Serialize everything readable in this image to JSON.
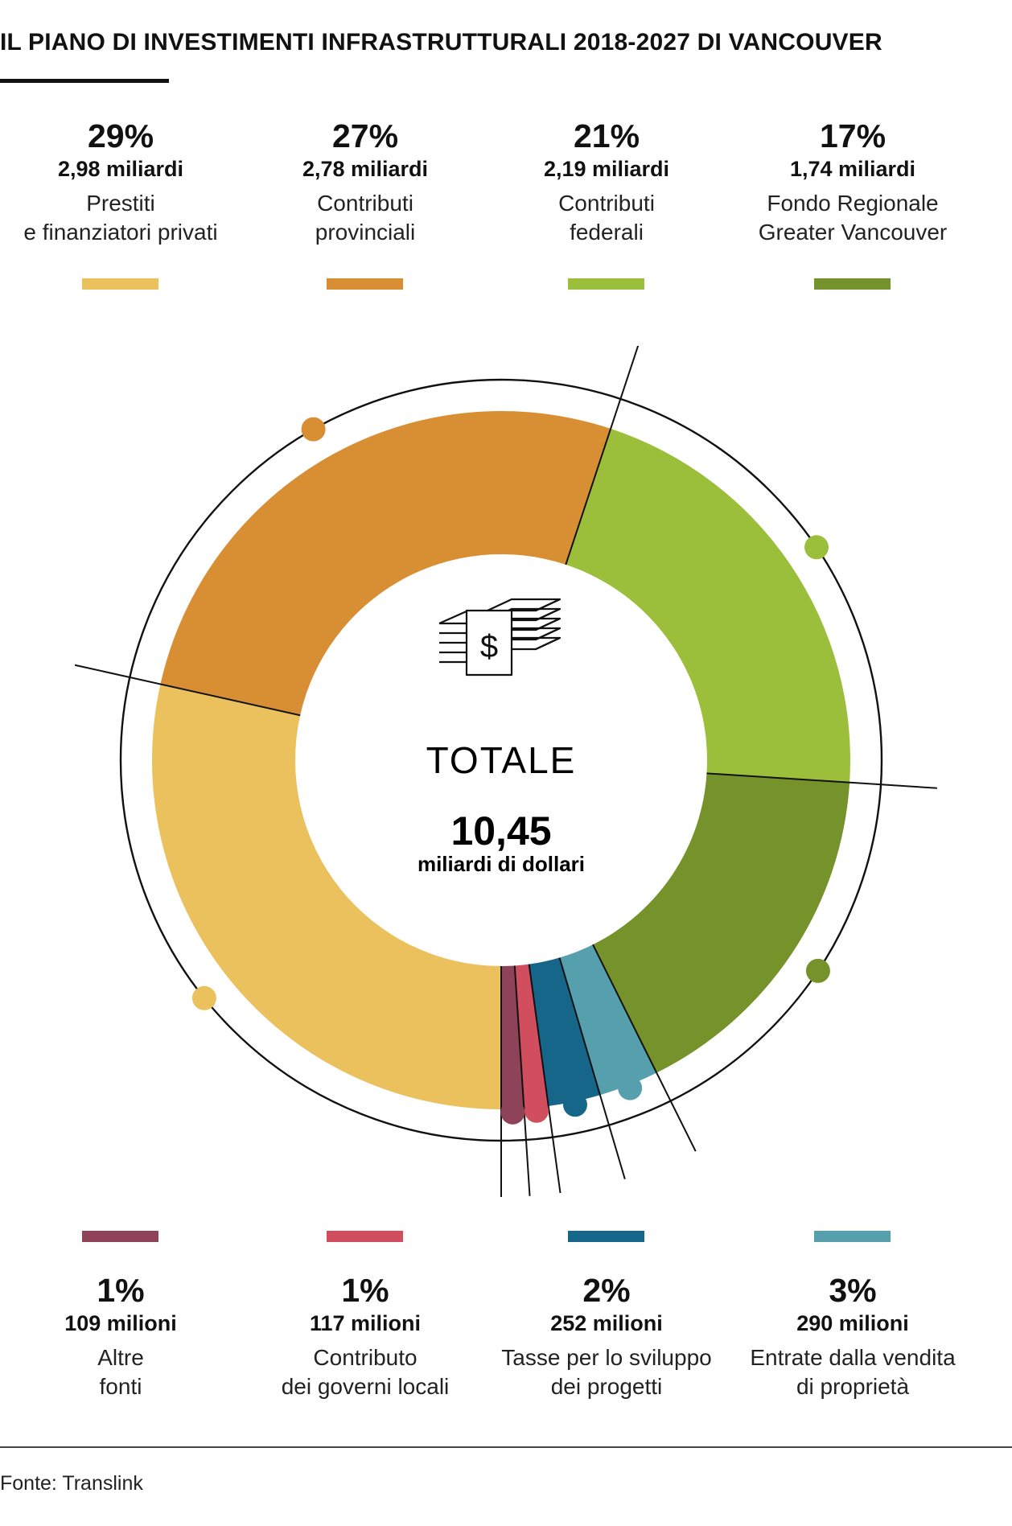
{
  "title": "IL PIANO DI INVESTIMENTI INFRASTRUTTURALI 2018-2027 DI VANCOUVER",
  "center": {
    "title": "TOTALE",
    "value": "10,45",
    "unit": "miliardi di dollari",
    "icon": "banknotes-icon"
  },
  "source": "Fonte: Translink",
  "chart_data": {
    "type": "pie",
    "total": 10.45,
    "segments": [
      {
        "name": "Prestiti e finanziatori privati",
        "label_lines": [
          "Prestiti",
          "e finanziatori privati"
        ],
        "percent": "29%",
        "amount_text": "2,98 miliardi",
        "value": 2.98,
        "color": "#EBC15E"
      },
      {
        "name": "Contributi provinciali",
        "label_lines": [
          "Contributi",
          "provinciali"
        ],
        "percent": "27%",
        "amount_text": "2,78 miliardi",
        "value": 2.78,
        "color": "#D88F34"
      },
      {
        "name": "Contributi federali",
        "label_lines": [
          "Contributi",
          "federali"
        ],
        "percent": "21%",
        "amount_text": "2,19 miliardi",
        "value": 2.19,
        "color": "#9BBF3B"
      },
      {
        "name": "Fondo Regionale Greater Vancouver",
        "label_lines": [
          "Fondo Regionale",
          "Greater Vancouver"
        ],
        "percent": "17%",
        "amount_text": "1,74 miliardi",
        "value": 1.74,
        "color": "#76932B"
      },
      {
        "name": "Entrate dalla vendita di proprietà",
        "label_lines": [
          "Entrate dalla vendita",
          "di proprietà"
        ],
        "percent": "3%",
        "amount_text": "290 milioni",
        "value": 0.29,
        "color": "#56A0AE"
      },
      {
        "name": "Tasse per lo sviluppo dei progetti",
        "label_lines": [
          "Tasse per lo sviluppo",
          "dei progetti"
        ],
        "percent": "2%",
        "amount_text": "252 milioni",
        "value": 0.252,
        "color": "#16668A"
      },
      {
        "name": "Contributo dei governi locali",
        "label_lines": [
          "Contributo",
          "dei governi locali"
        ],
        "percent": "1%",
        "amount_text": "117 milioni",
        "value": 0.117,
        "color": "#D04E5E"
      },
      {
        "name": "Altre fonti",
        "label_lines": [
          "Altre",
          "fonti"
        ],
        "percent": "1%",
        "amount_text": "109 milioni",
        "value": 0.109,
        "color": "#8E4358"
      }
    ],
    "legend_top": [
      0,
      1,
      2,
      3
    ],
    "legend_bottom": [
      7,
      6,
      5,
      4
    ]
  }
}
